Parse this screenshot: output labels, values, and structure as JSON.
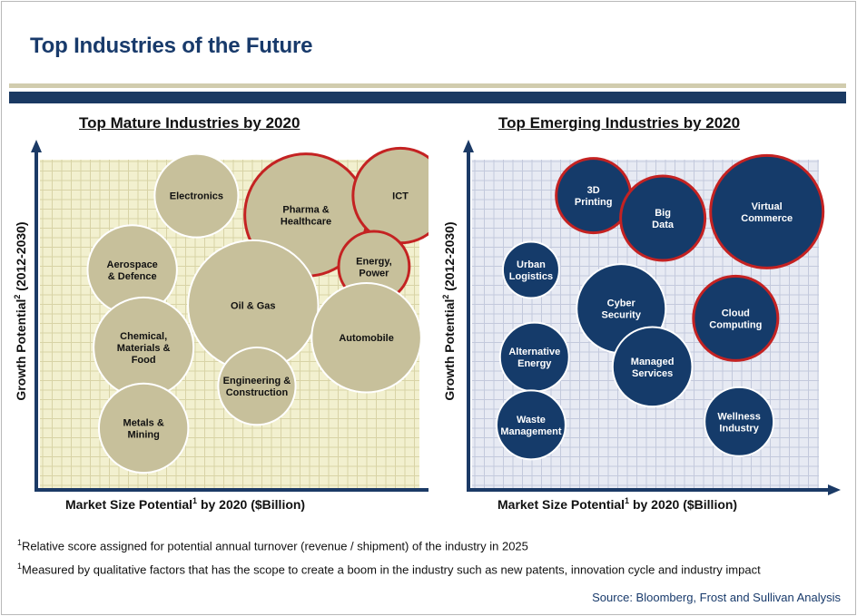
{
  "page": {
    "title": "Top Industries of the Future",
    "source": "Source: Bloomberg, Frost and Sullivan Analysis"
  },
  "footnotes": [
    {
      "marker": "1",
      "text": "Relative score assigned for potential annual turnover (revenue / shipment) of the industry in 2025"
    },
    {
      "marker": "1",
      "text": "Measured by qualitative factors that has the scope to create a boom in the industry such as new patents, innovation   cycle and industry impact"
    }
  ],
  "colors": {
    "title_navy": "#183a6b",
    "band_tan": "#d1ccae",
    "band_navy": "#1a3962",
    "mature_fill": "#c7c09b",
    "mature_plot_bg": "#f2f0cf",
    "emerging_fill": "#153b6a",
    "emerging_plot_bg": "#e7eaf3",
    "highlight_ring": "#c42222",
    "axis": "#1b3a66"
  },
  "chart_data": [
    {
      "type": "bubble",
      "title": "Top Mature Industries by 2020",
      "xlabel": "Market Size Potential",
      "xlabel_sup": "1",
      "xlabel_suffix": " by 2020 ($Billion)",
      "ylabel": "Growth Potential",
      "ylabel_sup": "2",
      "ylabel_suffix": " (2012-2030)",
      "grid": true,
      "xlim": [
        0,
        100
      ],
      "ylim": [
        0,
        100
      ],
      "points": [
        {
          "label": [
            "Electronics"
          ],
          "x": 40,
          "y": 90,
          "size": 7,
          "highlight": false
        },
        {
          "label": [
            "Pharma &",
            "Healthcare"
          ],
          "x": 69,
          "y": 84,
          "size": 15,
          "highlight": true
        },
        {
          "label": [
            "ICT"
          ],
          "x": 94,
          "y": 90,
          "size": 9,
          "highlight": true
        },
        {
          "label": [
            "Aerospace",
            "& Defence"
          ],
          "x": 23,
          "y": 67,
          "size": 8,
          "highlight": false
        },
        {
          "label": [
            "Energy,",
            "Power"
          ],
          "x": 87,
          "y": 68,
          "size": 5,
          "highlight": true
        },
        {
          "label": [
            "Oil & Gas"
          ],
          "x": 55,
          "y": 56,
          "size": 17,
          "highlight": false
        },
        {
          "label": [
            "Automobile"
          ],
          "x": 85,
          "y": 46,
          "size": 12,
          "highlight": false
        },
        {
          "label": [
            "Chemical,",
            "Materials &",
            "Food"
          ],
          "x": 26,
          "y": 43,
          "size": 10,
          "highlight": false
        },
        {
          "label": [
            "Engineering &",
            "Construction"
          ],
          "x": 56,
          "y": 31,
          "size": 6,
          "highlight": false
        },
        {
          "label": [
            "Metals &",
            "Mining"
          ],
          "x": 26,
          "y": 18,
          "size": 8,
          "highlight": false
        }
      ]
    },
    {
      "type": "bubble",
      "title": "Top Emerging Industries by 2020",
      "xlabel": "Market Size Potential",
      "xlabel_sup": "1",
      "xlabel_suffix": " by 2020 ($Billion)",
      "ylabel": "Growth Potential",
      "ylabel_sup": "2",
      "ylabel_suffix": " (2012-2030)",
      "grid": true,
      "xlim": [
        0,
        100
      ],
      "ylim": [
        0,
        100
      ],
      "points": [
        {
          "label": [
            "3D",
            "Printing"
          ],
          "x": 35,
          "y": 90,
          "size": 7,
          "highlight": true
        },
        {
          "label": [
            "Big",
            "Data"
          ],
          "x": 55,
          "y": 83,
          "size": 9,
          "highlight": true
        },
        {
          "label": [
            "Virtual",
            "Commerce"
          ],
          "x": 85,
          "y": 85,
          "size": 16,
          "highlight": true
        },
        {
          "label": [
            "Urban",
            "Logistics"
          ],
          "x": 17,
          "y": 67,
          "size": 4,
          "highlight": false
        },
        {
          "label": [
            "Cyber",
            "Security"
          ],
          "x": 43,
          "y": 55,
          "size": 10,
          "highlight": false
        },
        {
          "label": [
            "Cloud",
            "Computing"
          ],
          "x": 76,
          "y": 52,
          "size": 9,
          "highlight": true
        },
        {
          "label": [
            "Alternative",
            "Energy"
          ],
          "x": 18,
          "y": 40,
          "size": 6,
          "highlight": false
        },
        {
          "label": [
            "Managed",
            "Services"
          ],
          "x": 52,
          "y": 37,
          "size": 8,
          "highlight": false
        },
        {
          "label": [
            "Wellness",
            "Industry"
          ],
          "x": 77,
          "y": 20,
          "size": 6,
          "highlight": false
        },
        {
          "label": [
            "Waste",
            "Management"
          ],
          "x": 17,
          "y": 19,
          "size": 6,
          "highlight": false
        }
      ]
    }
  ]
}
